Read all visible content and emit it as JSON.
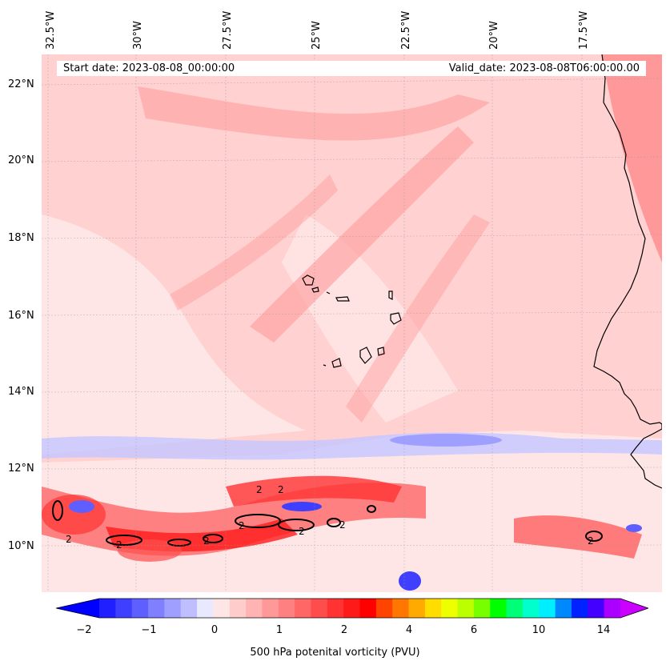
{
  "map": {
    "lon_labels": [
      "32.5°W",
      "30°W",
      "27.5°W",
      "25°W",
      "22.5°W",
      "20°W",
      "17.5°W"
    ],
    "lat_labels": [
      "22°N",
      "20°N",
      "18°N",
      "16°N",
      "14°N",
      "12°N",
      "10°N"
    ],
    "start_date": "Start date: 2023-08-08_00:00:00",
    "valid_date": "Valid_date: 2023-08-08T06:00:00.00",
    "contour_label": "2",
    "colors": {
      "background": "#ffe6e6",
      "light_pink": "#ffcccc",
      "mid_pink": "#ff9999",
      "red": "#ff4d4d",
      "deep_red": "#ff1a1a",
      "blue": "#1a1aff",
      "light_blue": "#c8c8ff",
      "coast": "#000000"
    }
  },
  "colorbar": {
    "ticks": [
      "−2",
      "−1",
      "0",
      "1",
      "2",
      "4",
      "6",
      "10",
      "14"
    ],
    "label": "500 hPa potenital vorticity (PVU)",
    "colors": [
      "#0000ff",
      "#1f1fff",
      "#3f3fff",
      "#5f5fff",
      "#7f7fff",
      "#9f9fff",
      "#bfbfff",
      "#e8e8ff",
      "#ffe6e6",
      "#ffcccc",
      "#ffb3b3",
      "#ff9999",
      "#ff8080",
      "#ff6666",
      "#ff4d4d",
      "#ff3333",
      "#ff1a1a",
      "#ff0000",
      "#ff4400",
      "#ff7700",
      "#ffaa00",
      "#ffdd00",
      "#eeff00",
      "#bbff00",
      "#77ff00",
      "#00ff00",
      "#00ff77",
      "#00ffcc",
      "#00eeff",
      "#0088ff",
      "#0022ff",
      "#4400ff",
      "#aa00ff",
      "#cc00ff"
    ]
  }
}
